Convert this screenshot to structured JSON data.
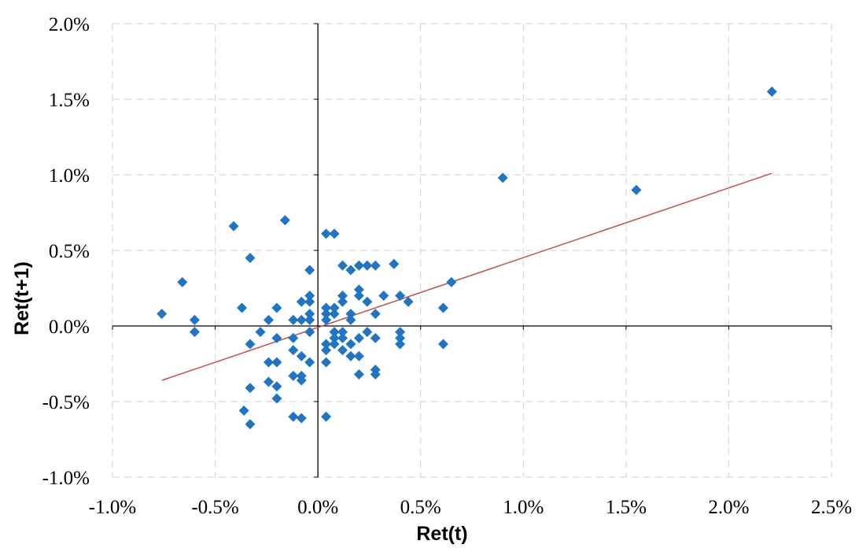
{
  "chart_data": {
    "type": "scatter",
    "title": "",
    "xlabel": "Ret(t)",
    "ylabel": "Ret(t+1)",
    "xlim": [
      -0.01,
      0.025
    ],
    "ylim": [
      -0.01,
      0.02
    ],
    "x_ticks": [
      -0.01,
      -0.005,
      0,
      0.005,
      0.01,
      0.015,
      0.02,
      0.025
    ],
    "y_ticks": [
      -0.01,
      -0.005,
      0,
      0.005,
      0.01,
      0.015,
      0.02
    ],
    "x_tick_labels": [
      "-1.0%",
      "-0.5%",
      "0.0%",
      "0.5%",
      "1.0%",
      "1.5%",
      "2.0%",
      "2.5%"
    ],
    "y_tick_labels": [
      "-1.0%",
      "-0.5%",
      "0.0%",
      "0.5%",
      "1.0%",
      "1.5%",
      "2.0%"
    ],
    "grid": true,
    "marker": "diamond",
    "colors": {
      "points": "#1f74c4",
      "trendline": "#c0504d",
      "grid": "#d9d9d9",
      "axis": "#000000"
    },
    "trendline": {
      "type": "linear",
      "x": [
        -0.0076,
        0.0221
      ],
      "y": [
        -0.0036,
        0.0101
      ]
    },
    "series": [
      {
        "points": [
          [
            -0.0076,
            0.0008
          ],
          [
            -0.0066,
            0.0029
          ],
          [
            -0.006,
            0.0004
          ],
          [
            -0.006,
            -0.0004
          ],
          [
            -0.0041,
            0.0066
          ],
          [
            -0.0037,
            0.0012
          ],
          [
            -0.0036,
            -0.0056
          ],
          [
            -0.0033,
            0.0045
          ],
          [
            -0.0033,
            -0.0012
          ],
          [
            -0.0033,
            -0.0041
          ],
          [
            -0.0033,
            -0.0065
          ],
          [
            -0.0028,
            -0.0004
          ],
          [
            -0.0024,
            0.0004
          ],
          [
            -0.0024,
            -0.0024
          ],
          [
            -0.0024,
            -0.0037
          ],
          [
            -0.002,
            0.0012
          ],
          [
            -0.002,
            -0.0008
          ],
          [
            -0.002,
            -0.0024
          ],
          [
            -0.002,
            -0.004
          ],
          [
            -0.002,
            -0.0048
          ],
          [
            -0.0016,
            0.007
          ],
          [
            -0.0012,
            0.0004
          ],
          [
            -0.0012,
            -0.0008
          ],
          [
            -0.0012,
            -0.0016
          ],
          [
            -0.0012,
            -0.0033
          ],
          [
            -0.0012,
            -0.006
          ],
          [
            -0.0008,
            0.0016
          ],
          [
            -0.0008,
            0.0004
          ],
          [
            -0.0008,
            -0.002
          ],
          [
            -0.0008,
            -0.0033
          ],
          [
            -0.0008,
            -0.0036
          ],
          [
            -0.0008,
            -0.0061
          ],
          [
            -0.0004,
            0.0037
          ],
          [
            -0.0004,
            0.002
          ],
          [
            -0.0004,
            0.0016
          ],
          [
            -0.0004,
            0.0008
          ],
          [
            -0.0004,
            0.0004
          ],
          [
            -0.0004,
            -0.0004
          ],
          [
            -0.0004,
            -0.0024
          ],
          [
            0.0004,
            0.0061
          ],
          [
            0.0004,
            0.0012
          ],
          [
            0.0004,
            0.0008
          ],
          [
            0.0004,
            0.0004
          ],
          [
            0.0004,
            -0.0012
          ],
          [
            0.0004,
            -0.0016
          ],
          [
            0.0004,
            -0.0024
          ],
          [
            0.0004,
            -0.006
          ],
          [
            0.0008,
            0.0061
          ],
          [
            0.0008,
            0.0012
          ],
          [
            0.0008,
            0.0008
          ],
          [
            0.0008,
            -0.0004
          ],
          [
            0.0008,
            -0.0008
          ],
          [
            0.0008,
            -0.0012
          ],
          [
            0.0012,
            0.004
          ],
          [
            0.0012,
            0.002
          ],
          [
            0.0012,
            0.0016
          ],
          [
            0.0012,
            -0.0004
          ],
          [
            0.0012,
            -0.0008
          ],
          [
            0.0012,
            -0.0016
          ],
          [
            0.0016,
            0.0037
          ],
          [
            0.0016,
            0.0008
          ],
          [
            0.0016,
            0.0004
          ],
          [
            0.0016,
            -0.0012
          ],
          [
            0.0016,
            -0.002
          ],
          [
            0.002,
            0.004
          ],
          [
            0.002,
            0.0024
          ],
          [
            0.002,
            0.002
          ],
          [
            0.002,
            -0.0008
          ],
          [
            0.002,
            -0.002
          ],
          [
            0.002,
            -0.0032
          ],
          [
            0.0024,
            0.004
          ],
          [
            0.0024,
            0.0016
          ],
          [
            0.0024,
            -0.0004
          ],
          [
            0.0028,
            0.004
          ],
          [
            0.0028,
            0.0008
          ],
          [
            0.0028,
            -0.0008
          ],
          [
            0.0028,
            -0.0029
          ],
          [
            0.0028,
            -0.0032
          ],
          [
            0.0032,
            0.002
          ],
          [
            0.0037,
            0.0041
          ],
          [
            0.004,
            0.002
          ],
          [
            0.004,
            -0.0004
          ],
          [
            0.004,
            -0.0008
          ],
          [
            0.004,
            -0.0012
          ],
          [
            0.0044,
            0.0016
          ],
          [
            0.0061,
            0.0012
          ],
          [
            0.0061,
            -0.0012
          ],
          [
            0.0065,
            0.0029
          ],
          [
            0.009,
            0.0098
          ],
          [
            0.0155,
            0.009
          ],
          [
            0.0221,
            0.0155
          ]
        ]
      }
    ]
  }
}
